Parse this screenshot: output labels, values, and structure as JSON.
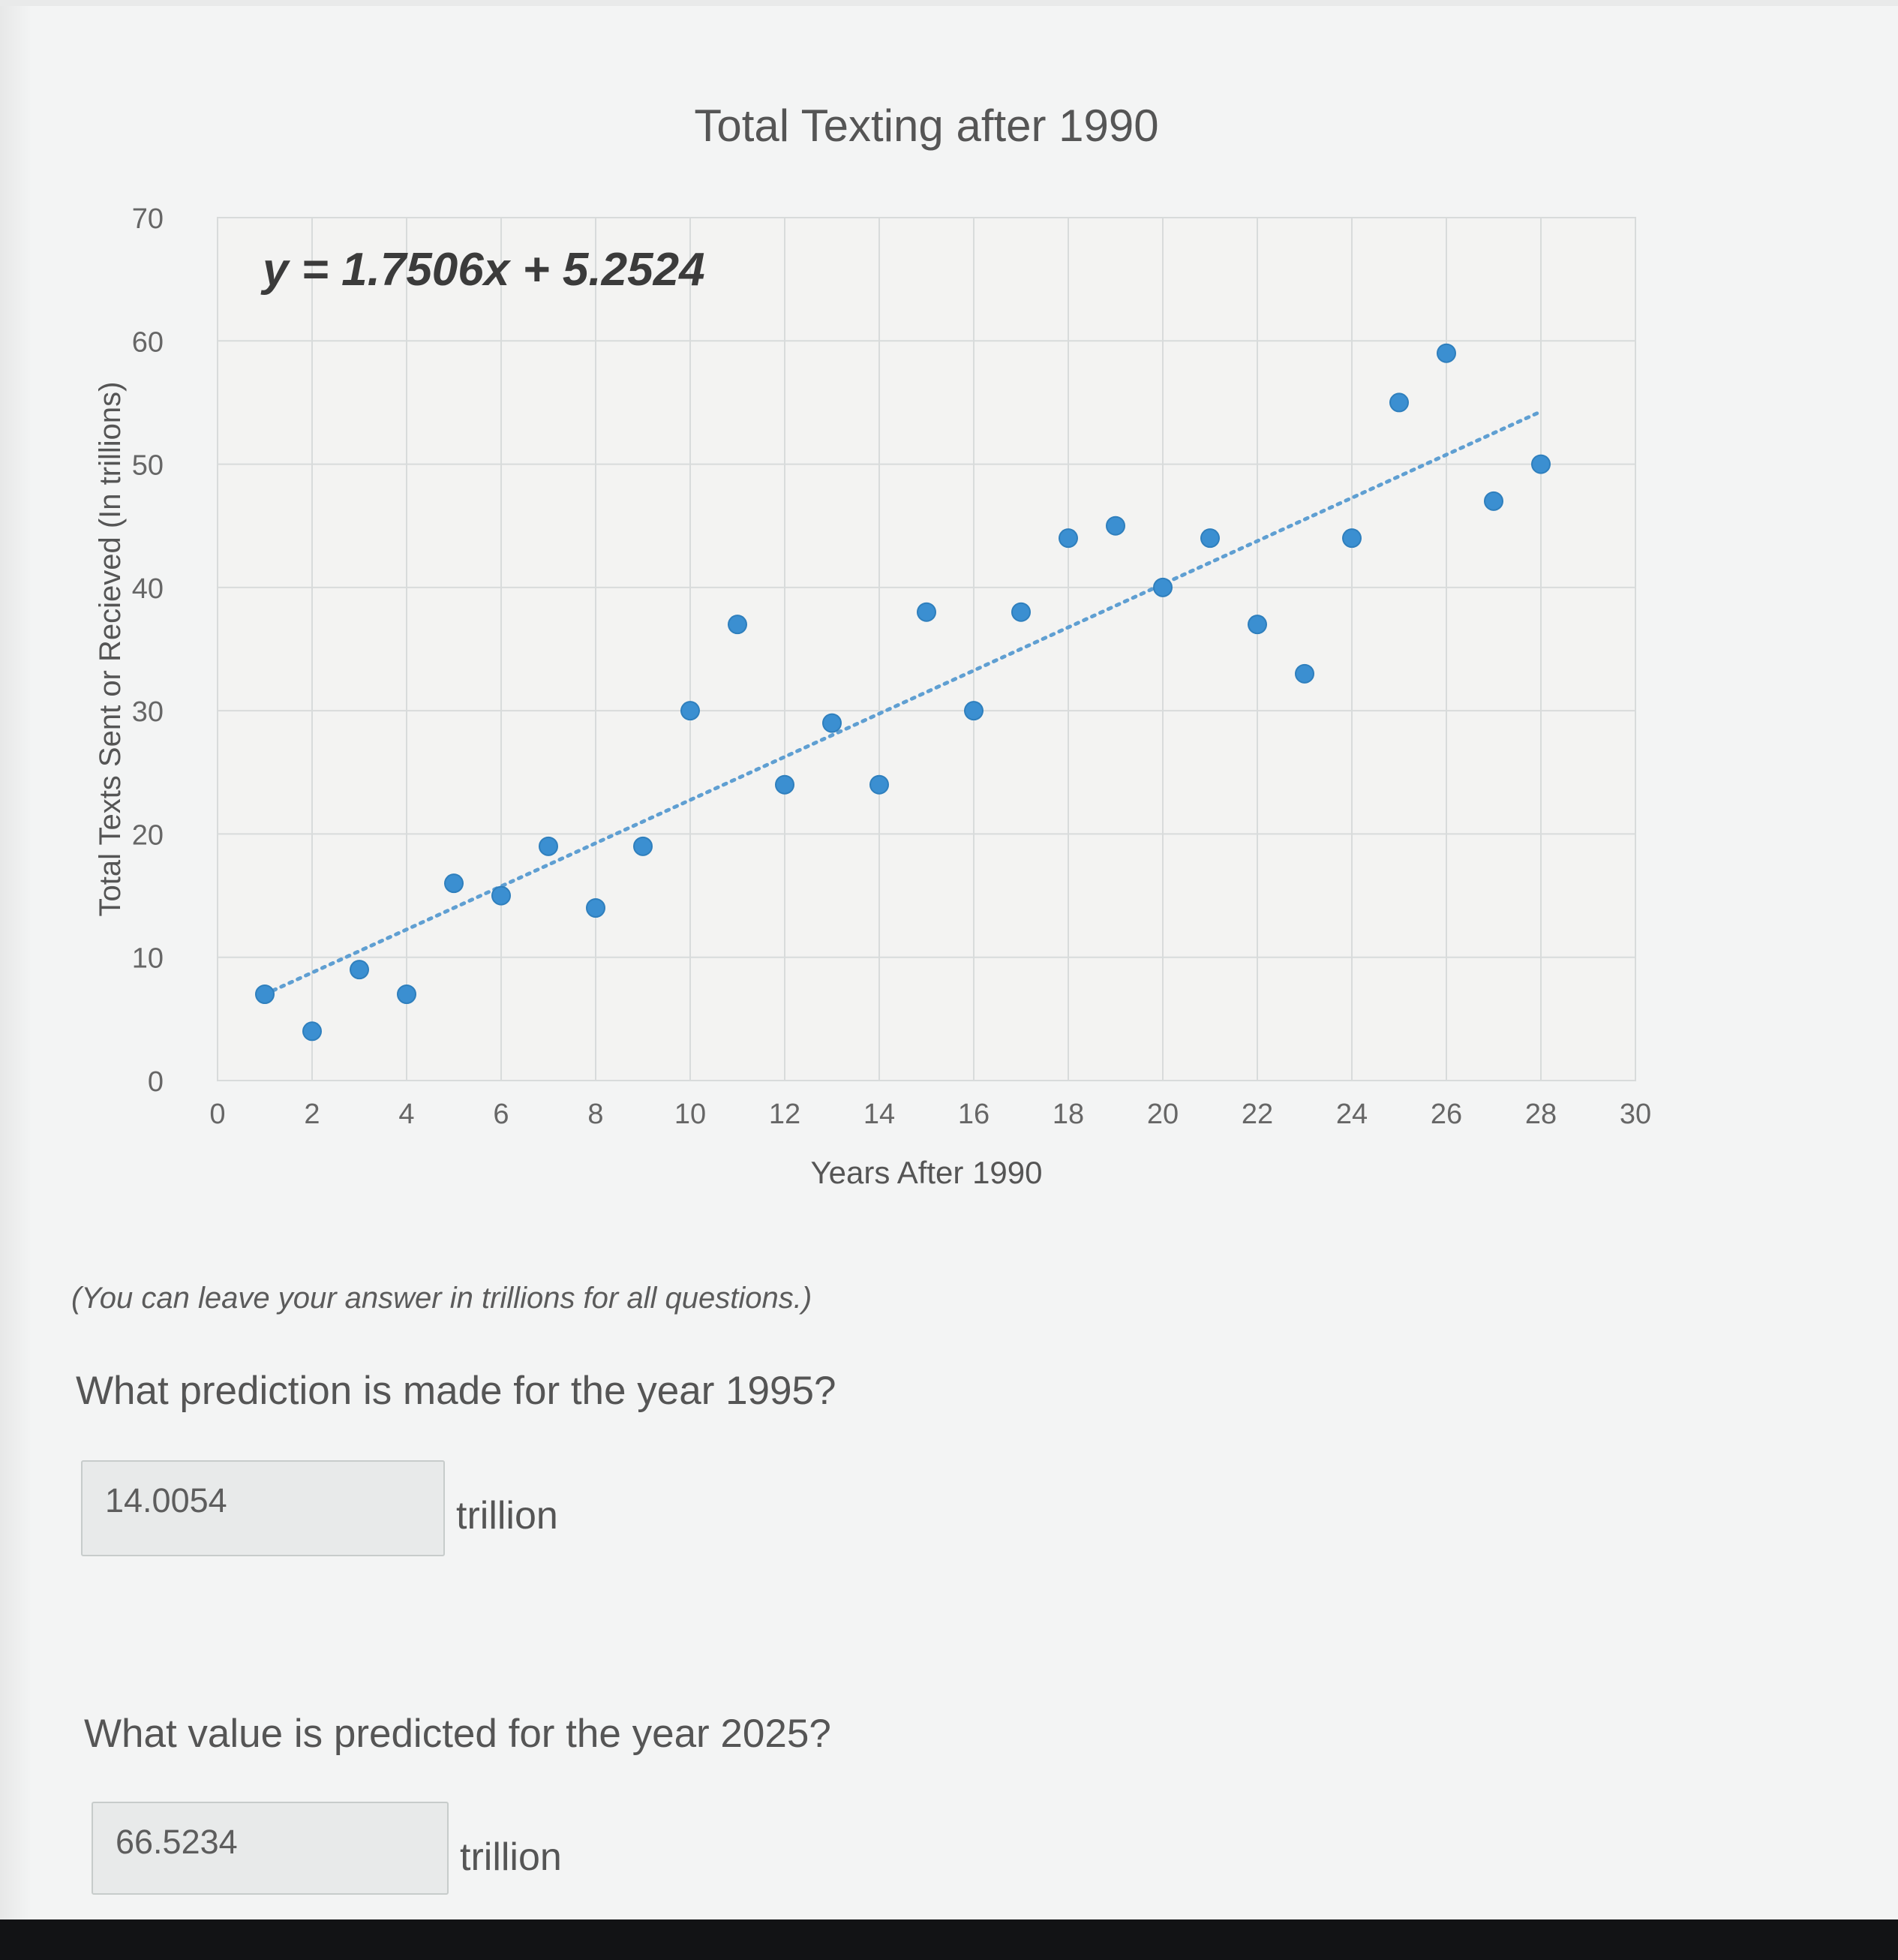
{
  "chart_data": {
    "type": "scatter",
    "title": "Total Texting after 1990",
    "xlabel": "Years After 1990",
    "ylabel": "Total Texts Sent or Recieved (In trillions)",
    "xlim": [
      0,
      30
    ],
    "ylim": [
      0,
      70
    ],
    "x_ticks": [
      "0",
      "2",
      "4",
      "6",
      "8",
      "10",
      "12",
      "14",
      "16",
      "18",
      "20",
      "22",
      "24",
      "26",
      "28",
      "30"
    ],
    "y_ticks": [
      "0",
      "10",
      "20",
      "30",
      "40",
      "50",
      "60",
      "70"
    ],
    "grid": true,
    "series": [
      {
        "x": [
          1,
          2,
          3,
          4,
          5,
          6,
          7,
          8,
          9,
          10,
          11,
          12,
          13,
          14,
          15,
          16,
          17,
          18,
          19,
          20,
          21,
          22,
          23,
          24,
          25,
          26,
          27,
          28
        ],
        "y": [
          7,
          4,
          9,
          7,
          16,
          15,
          19,
          14,
          19,
          30,
          37,
          24,
          29,
          24,
          38,
          30,
          38,
          44,
          45,
          40,
          44,
          37,
          33,
          44,
          55,
          59,
          47,
          50
        ],
        "color": "#3b8fd1"
      }
    ],
    "trendline": {
      "equation": "y = 1.7506x + 5.2524",
      "slope": 1.7506,
      "intercept": 5.2524,
      "x_range": [
        1,
        28
      ],
      "style": "dotted",
      "color": "#5f9fd2"
    }
  },
  "instructions": {
    "note": "(You can leave your answer in trillions for all questions.)"
  },
  "questions": [
    {
      "prompt": "What prediction is made for the year 1995?",
      "answer": "14.0054",
      "unit": "trillion"
    },
    {
      "prompt": "What value is predicted for the year 2025?",
      "answer": "66.5234",
      "unit": "trillion"
    }
  ]
}
